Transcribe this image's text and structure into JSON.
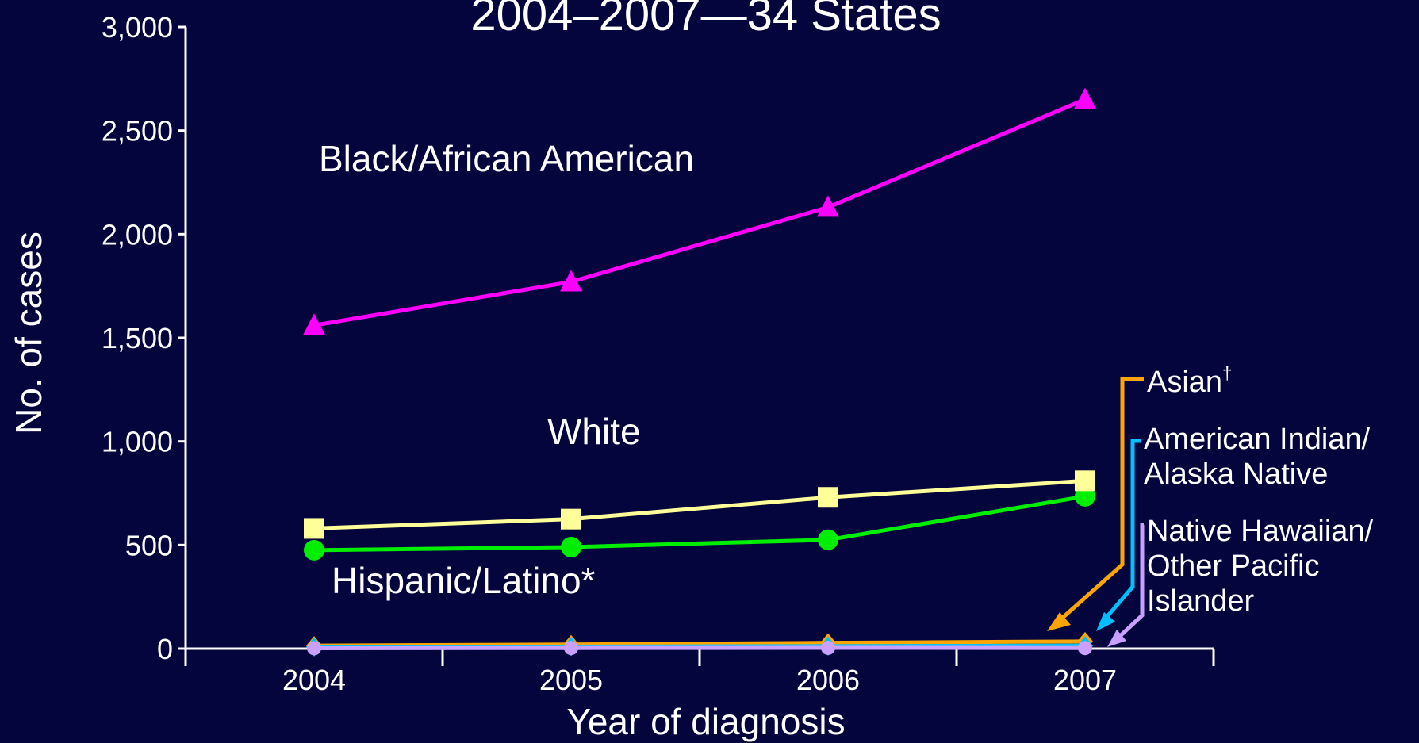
{
  "chart_data": {
    "type": "line",
    "title": "2004–2007—34 States",
    "xlabel": "Year of diagnosis",
    "ylabel": "No. of cases",
    "ylim": [
      0,
      3000
    ],
    "yticks": [
      0,
      500,
      1000,
      1500,
      2000,
      2500,
      3000
    ],
    "ytick_labels": [
      "0",
      "500",
      "1,000",
      "1,500",
      "2,000",
      "2,500",
      "3,000"
    ],
    "categories": [
      "2004",
      "2005",
      "2006",
      "2007"
    ],
    "grid": false,
    "series": [
      {
        "name": "Black/African American",
        "color": "#ff00ff",
        "marker": "triangle",
        "values": [
          1560,
          1770,
          2130,
          2650
        ]
      },
      {
        "name": "White",
        "color": "#ffff99",
        "marker": "square",
        "values": [
          580,
          625,
          730,
          810
        ]
      },
      {
        "name": "Hispanic/Latino*",
        "color": "#00ee00",
        "marker": "circle",
        "values": [
          475,
          490,
          525,
          735
        ]
      },
      {
        "name": "Asian",
        "name_suffix": "†",
        "color": "#ffa500",
        "marker": "diamond",
        "values": [
          15,
          20,
          28,
          35
        ]
      },
      {
        "name_lines": [
          "American Indian/",
          "Alaska Native"
        ],
        "color": "#00bfff",
        "marker": "diamond",
        "values": [
          8,
          10,
          12,
          15
        ]
      },
      {
        "name_lines": [
          "Native Hawaiian/",
          "Other Pacific",
          "Islander"
        ],
        "color": "#c9a0ff",
        "marker": "circle",
        "values": [
          2,
          3,
          4,
          3
        ]
      }
    ]
  }
}
